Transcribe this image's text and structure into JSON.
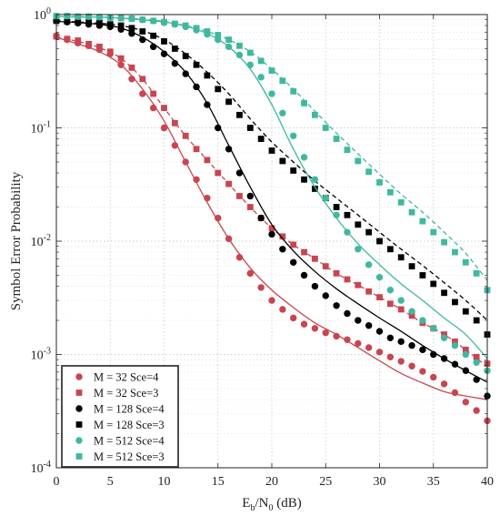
{
  "chart_data": {
    "type": "line",
    "xlabel": {
      "base": "E",
      "sub1": "b",
      "mid": "/N",
      "sub2": "0",
      "tail": " (dB)"
    },
    "ylabel": "Symbol Error Probability",
    "xlim": [
      0,
      40
    ],
    "ylim": [
      0.0001,
      1
    ],
    "yscale": "log",
    "grid": true,
    "legend_position": "bottom-left",
    "x_ticks": [
      0,
      5,
      10,
      15,
      20,
      25,
      30,
      35,
      40
    ],
    "y_ticks": [
      {
        "value": 0.0001,
        "base": "10",
        "exp": "-4"
      },
      {
        "value": 0.001,
        "base": "10",
        "exp": "-3"
      },
      {
        "value": 0.01,
        "base": "10",
        "exp": "-2"
      },
      {
        "value": 0.1,
        "base": "10",
        "exp": "-1"
      },
      {
        "value": 1,
        "base": "10",
        "exp": "0"
      }
    ],
    "series": [
      {
        "name": "M = 32 Sce=4",
        "color": "#c8454f",
        "marker": "circle",
        "line_style": "solid",
        "x": [
          0,
          1,
          2,
          3,
          4,
          5,
          6,
          7,
          8,
          9,
          10,
          11,
          12,
          13,
          14,
          15,
          16,
          17,
          18,
          19,
          20,
          21,
          22,
          23,
          24,
          25,
          26,
          27,
          28,
          29,
          30,
          31,
          32,
          33,
          34,
          35,
          36,
          37,
          38,
          39,
          40
        ],
        "y": [
          0.65,
          0.6,
          0.56,
          0.53,
          0.49,
          0.45,
          0.36,
          0.27,
          0.2,
          0.15,
          0.1,
          0.07,
          0.05,
          0.035,
          0.024,
          0.016,
          0.0105,
          0.0072,
          0.0052,
          0.0039,
          0.003,
          0.0025,
          0.0021,
          0.00185,
          0.0017,
          0.00155,
          0.00145,
          0.00135,
          0.00125,
          0.00115,
          0.00105,
          0.00095,
          0.00087,
          0.00079,
          0.00071,
          0.00063,
          0.00055,
          0.00046,
          0.00038,
          0.00032,
          0.00026
        ],
        "curve_x": [
          0,
          2,
          4,
          6,
          8,
          10,
          12,
          14,
          16,
          18,
          20,
          22,
          24,
          26,
          28,
          30,
          32,
          34,
          36,
          38,
          40
        ],
        "curve_y": [
          0.63,
          0.55,
          0.47,
          0.36,
          0.22,
          0.115,
          0.05,
          0.022,
          0.0105,
          0.0058,
          0.0037,
          0.0026,
          0.0019,
          0.0015,
          0.00115,
          0.00088,
          0.00068,
          0.00056,
          0.00047,
          0.00043,
          0.0004
        ]
      },
      {
        "name": "M = 32 Sce=3",
        "color": "#c8454f",
        "marker": "square",
        "line_style": "dashed",
        "x": [
          0,
          1,
          2,
          3,
          4,
          5,
          6,
          7,
          8,
          9,
          10,
          11,
          12,
          13,
          14,
          15,
          16,
          17,
          18,
          19,
          20,
          21,
          22,
          23,
          24,
          25,
          26,
          27,
          28,
          29,
          30,
          31,
          32,
          33,
          34,
          35,
          36,
          37,
          38,
          39,
          40
        ],
        "y": [
          0.64,
          0.61,
          0.59,
          0.55,
          0.52,
          0.47,
          0.41,
          0.34,
          0.27,
          0.2,
          0.15,
          0.11,
          0.085,
          0.065,
          0.052,
          0.04,
          0.032,
          0.025,
          0.02,
          0.016,
          0.013,
          0.011,
          0.0093,
          0.008,
          0.007,
          0.006,
          0.0052,
          0.0046,
          0.0041,
          0.0036,
          0.0032,
          0.0028,
          0.0025,
          0.0022,
          0.0019,
          0.0017,
          0.0015,
          0.0013,
          0.0011,
          0.00095,
          0.00083
        ],
        "curve_x": [
          0,
          2,
          4,
          6,
          8,
          10,
          12,
          14,
          16,
          18,
          20,
          22,
          24,
          26,
          28,
          30,
          32,
          34,
          36,
          38,
          40
        ],
        "curve_y": [
          0.63,
          0.58,
          0.51,
          0.41,
          0.27,
          0.15,
          0.085,
          0.052,
          0.032,
          0.02,
          0.013,
          0.0093,
          0.007,
          0.0052,
          0.0041,
          0.0032,
          0.0025,
          0.0019,
          0.0015,
          0.0011,
          0.00078
        ]
      },
      {
        "name": "M = 128 Sce=4",
        "color": "#000000",
        "marker": "circle",
        "line_style": "solid",
        "x": [
          0,
          1,
          2,
          3,
          4,
          5,
          6,
          7,
          8,
          9,
          10,
          11,
          12,
          13,
          14,
          15,
          16,
          17,
          18,
          19,
          20,
          21,
          22,
          23,
          24,
          25,
          26,
          27,
          28,
          29,
          30,
          31,
          32,
          33,
          34,
          35,
          36,
          37,
          38,
          39,
          40
        ],
        "y": [
          0.88,
          0.86,
          0.84,
          0.82,
          0.8,
          0.78,
          0.74,
          0.68,
          0.6,
          0.52,
          0.45,
          0.37,
          0.3,
          0.23,
          0.16,
          0.1,
          0.065,
          0.04,
          0.025,
          0.016,
          0.0115,
          0.0085,
          0.0065,
          0.005,
          0.004,
          0.0033,
          0.0027,
          0.0023,
          0.002,
          0.0018,
          0.0016,
          0.0014,
          0.0013,
          0.0012,
          0.0011,
          0.001,
          0.00092,
          0.00082,
          0.00072,
          0.0006,
          0.00043
        ],
        "curve_x": [
          0,
          2,
          4,
          6,
          8,
          10,
          12,
          14,
          16,
          18,
          20,
          22,
          24,
          26,
          28,
          30,
          32,
          34,
          36,
          38,
          40
        ],
        "curve_y": [
          0.87,
          0.85,
          0.82,
          0.76,
          0.63,
          0.47,
          0.31,
          0.165,
          0.07,
          0.03,
          0.014,
          0.0082,
          0.0054,
          0.0038,
          0.0028,
          0.0021,
          0.0016,
          0.0012,
          0.00092,
          0.00072,
          0.00057
        ]
      },
      {
        "name": "M = 128 Sce=3",
        "color": "#000000",
        "marker": "square",
        "line_style": "dashed",
        "x": [
          0,
          1,
          2,
          3,
          4,
          5,
          6,
          7,
          8,
          9,
          10,
          11,
          12,
          13,
          14,
          15,
          16,
          17,
          18,
          19,
          20,
          21,
          22,
          23,
          24,
          25,
          26,
          27,
          28,
          29,
          30,
          31,
          32,
          33,
          34,
          35,
          36,
          37,
          38,
          39,
          40
        ],
        "y": [
          0.88,
          0.87,
          0.86,
          0.85,
          0.84,
          0.82,
          0.8,
          0.76,
          0.71,
          0.65,
          0.58,
          0.5,
          0.43,
          0.36,
          0.29,
          0.22,
          0.17,
          0.13,
          0.1,
          0.08,
          0.063,
          0.051,
          0.042,
          0.035,
          0.029,
          0.024,
          0.02,
          0.017,
          0.014,
          0.012,
          0.01,
          0.0085,
          0.0072,
          0.006,
          0.005,
          0.0042,
          0.0035,
          0.0029,
          0.0024,
          0.002,
          0.0015
        ],
        "curve_x": [
          0,
          2,
          4,
          6,
          8,
          10,
          12,
          14,
          16,
          18,
          20,
          22,
          24,
          26,
          28,
          30,
          32,
          34,
          36,
          38,
          40
        ],
        "curve_y": [
          0.88,
          0.86,
          0.84,
          0.8,
          0.72,
          0.6,
          0.45,
          0.31,
          0.2,
          0.12,
          0.075,
          0.05,
          0.034,
          0.024,
          0.017,
          0.012,
          0.0085,
          0.0061,
          0.0043,
          0.003,
          0.002
        ]
      },
      {
        "name": "M = 512 Sce=4",
        "color": "#3fb8a0",
        "marker": "circle",
        "line_style": "solid",
        "x": [
          0,
          1,
          2,
          3,
          4,
          5,
          6,
          7,
          8,
          9,
          10,
          11,
          12,
          13,
          14,
          15,
          16,
          17,
          18,
          19,
          20,
          21,
          22,
          23,
          24,
          25,
          26,
          27,
          28,
          29,
          30,
          31,
          32,
          33,
          34,
          35,
          36,
          37,
          38,
          39,
          40
        ],
        "y": [
          0.97,
          0.97,
          0.96,
          0.96,
          0.95,
          0.94,
          0.93,
          0.92,
          0.9,
          0.88,
          0.85,
          0.82,
          0.78,
          0.73,
          0.67,
          0.6,
          0.52,
          0.44,
          0.36,
          0.28,
          0.2,
          0.135,
          0.085,
          0.055,
          0.035,
          0.024,
          0.017,
          0.012,
          0.0085,
          0.0062,
          0.0048,
          0.0037,
          0.003,
          0.0024,
          0.002,
          0.0017,
          0.0014,
          0.0012,
          0.001,
          0.00085,
          0.00072
        ],
        "curve_x": [
          0,
          2,
          4,
          6,
          8,
          10,
          12,
          14,
          16,
          18,
          20,
          22,
          24,
          26,
          28,
          30,
          32,
          34,
          36,
          38,
          40
        ],
        "curve_y": [
          0.96,
          0.95,
          0.95,
          0.93,
          0.9,
          0.86,
          0.79,
          0.68,
          0.52,
          0.33,
          0.16,
          0.065,
          0.03,
          0.016,
          0.0095,
          0.0062,
          0.0042,
          0.003,
          0.0021,
          0.0015,
          0.00092
        ]
      },
      {
        "name": "M = 512 Sce=3",
        "color": "#3fb8a0",
        "marker": "square",
        "line_style": "dashed",
        "x": [
          0,
          1,
          2,
          3,
          4,
          5,
          6,
          7,
          8,
          9,
          10,
          11,
          12,
          13,
          14,
          15,
          16,
          17,
          18,
          19,
          20,
          21,
          22,
          23,
          24,
          25,
          26,
          27,
          28,
          29,
          30,
          31,
          32,
          33,
          34,
          35,
          36,
          37,
          38,
          39,
          40
        ],
        "y": [
          0.97,
          0.97,
          0.96,
          0.96,
          0.95,
          0.94,
          0.93,
          0.92,
          0.9,
          0.88,
          0.86,
          0.83,
          0.8,
          0.76,
          0.71,
          0.66,
          0.6,
          0.53,
          0.46,
          0.39,
          0.32,
          0.26,
          0.21,
          0.165,
          0.13,
          0.1,
          0.08,
          0.064,
          0.051,
          0.041,
          0.033,
          0.027,
          0.022,
          0.018,
          0.015,
          0.012,
          0.0098,
          0.008,
          0.0065,
          0.0052,
          0.0037
        ],
        "curve_x": [
          0,
          2,
          4,
          6,
          8,
          10,
          12,
          14,
          16,
          18,
          20,
          22,
          24,
          26,
          28,
          30,
          32,
          34,
          36,
          38,
          40
        ],
        "curve_y": [
          0.96,
          0.96,
          0.95,
          0.93,
          0.91,
          0.87,
          0.8,
          0.71,
          0.6,
          0.47,
          0.33,
          0.22,
          0.14,
          0.09,
          0.059,
          0.039,
          0.026,
          0.018,
          0.012,
          0.0078,
          0.0045
        ]
      }
    ]
  }
}
